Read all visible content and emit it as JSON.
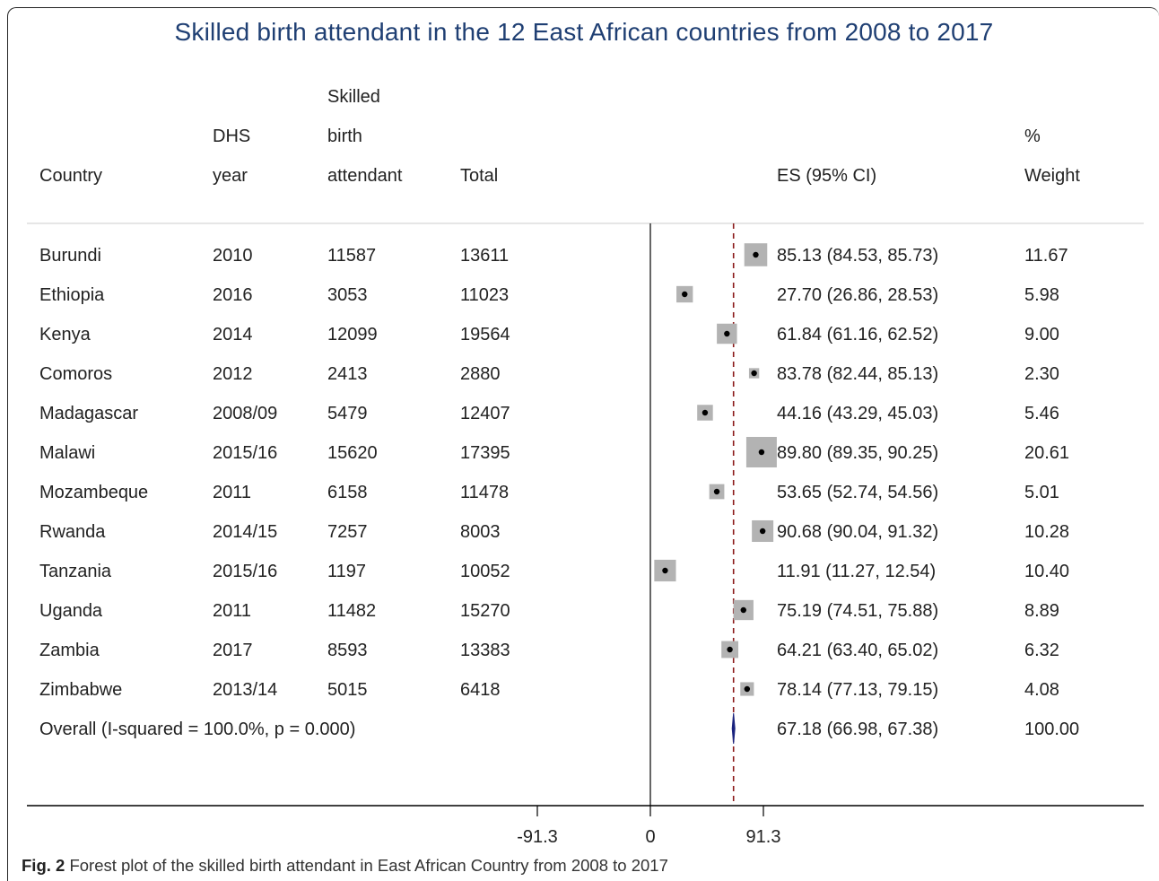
{
  "figure": {
    "caption_label": "Fig. 2",
    "caption_text": "Forest plot of the skilled birth attendant in East African Country from 2008 to 2017"
  },
  "chart_data": {
    "type": "forest",
    "title": "Skilled birth attendant in the 12 East African countries from 2008 to 2017",
    "column_headers": [
      {
        "key": "country",
        "lines": [
          "Country"
        ]
      },
      {
        "key": "year",
        "lines": [
          "DHS",
          "year"
        ]
      },
      {
        "key": "sba",
        "lines": [
          "Skilled",
          "birth",
          "attendant"
        ]
      },
      {
        "key": "total",
        "lines": [
          "Total"
        ]
      },
      {
        "key": "es",
        "lines": [
          "ES (95% CI)"
        ]
      },
      {
        "key": "weight",
        "lines": [
          "%",
          "Weight"
        ]
      }
    ],
    "rows": [
      {
        "country": "Burundi",
        "year": "2010",
        "sba": "11587",
        "total": "13611",
        "es": 85.13,
        "lo": 84.53,
        "hi": 85.73,
        "es_text": "85.13 (84.53, 85.73)",
        "weight": "11.67"
      },
      {
        "country": "Ethiopia",
        "year": "2016",
        "sba": "3053",
        "total": "11023",
        "es": 27.7,
        "lo": 26.86,
        "hi": 28.53,
        "es_text": "27.70 (26.86, 28.53)",
        "weight": "5.98"
      },
      {
        "country": "Kenya",
        "year": "2014",
        "sba": "12099",
        "total": "19564",
        "es": 61.84,
        "lo": 61.16,
        "hi": 62.52,
        "es_text": "61.84 (61.16, 62.52)",
        "weight": "9.00"
      },
      {
        "country": "Comoros",
        "year": "2012",
        "sba": "2413",
        "total": "2880",
        "es": 83.78,
        "lo": 82.44,
        "hi": 85.13,
        "es_text": "83.78 (82.44, 85.13)",
        "weight": "2.30"
      },
      {
        "country": "Madagascar",
        "year": "2008/09",
        "sba": "5479",
        "total": "12407",
        "es": 44.16,
        "lo": 43.29,
        "hi": 45.03,
        "es_text": "44.16 (43.29, 45.03)",
        "weight": "5.46"
      },
      {
        "country": "Malawi",
        "year": "2015/16",
        "sba": "15620",
        "total": "17395",
        "es": 89.8,
        "lo": 89.35,
        "hi": 90.25,
        "es_text": "89.80 (89.35, 90.25)",
        "weight": "20.61"
      },
      {
        "country": "Mozambeque",
        "year": "2011",
        "sba": "6158",
        "total": "11478",
        "es": 53.65,
        "lo": 52.74,
        "hi": 54.56,
        "es_text": "53.65 (52.74, 54.56)",
        "weight": "5.01"
      },
      {
        "country": "Rwanda",
        "year": "2014/15",
        "sba": "7257",
        "total": "8003",
        "es": 90.68,
        "lo": 90.04,
        "hi": 91.32,
        "es_text": "90.68 (90.04, 91.32)",
        "weight": "10.28"
      },
      {
        "country": "Tanzania",
        "year": "2015/16",
        "sba": "1197",
        "total": "10052",
        "es": 11.91,
        "lo": 11.27,
        "hi": 12.54,
        "es_text": "11.91 (11.27, 12.54)",
        "weight": "10.40"
      },
      {
        "country": "Uganda",
        "year": "2011",
        "sba": "11482",
        "total": "15270",
        "es": 75.19,
        "lo": 74.51,
        "hi": 75.88,
        "es_text": "75.19 (74.51, 75.88)",
        "weight": "8.89"
      },
      {
        "country": "Zambia",
        "year": "2017",
        "sba": "8593",
        "total": "13383",
        "es": 64.21,
        "lo": 63.4,
        "hi": 65.02,
        "es_text": "64.21 (63.40, 65.02)",
        "weight": "6.32"
      },
      {
        "country": "Zimbabwe",
        "year": "2013/14",
        "sba": "5015",
        "total": "6418",
        "es": 78.14,
        "lo": 77.13,
        "hi": 79.15,
        "es_text": "78.14 (77.13, 79.15)",
        "weight": "4.08"
      }
    ],
    "overall": {
      "label": "Overall  (I-squared = 100.0%, p = 0.000)",
      "es": 67.18,
      "lo": 66.98,
      "hi": 67.38,
      "es_text": "67.18 (66.98, 67.38)",
      "weight": "100.00"
    },
    "x_ticks": [
      {
        "value": -91.3,
        "label": "-91.3"
      },
      {
        "value": 0,
        "label": "0"
      },
      {
        "value": 91.3,
        "label": "91.3"
      }
    ],
    "xlim": [
      -91.3,
      91.3
    ],
    "null_line": 0,
    "reference_line": 67.18,
    "colors": {
      "title": "#1f3f73",
      "box": "#b3b3b3",
      "point": "#000000",
      "overall": "#1a237e",
      "reference_line": "#8b1a1a",
      "axis": "#000000",
      "text": "#222222"
    }
  }
}
